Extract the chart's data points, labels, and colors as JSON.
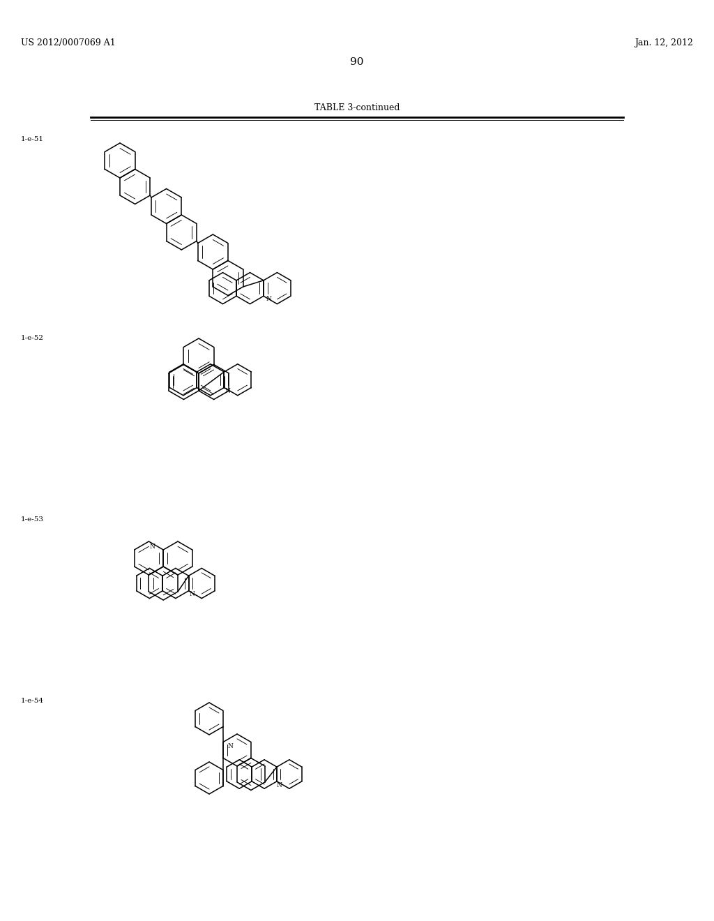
{
  "background_color": "#ffffff",
  "page_number": "90",
  "patent_left": "US 2012/0007069 A1",
  "patent_right": "Jan. 12, 2012",
  "table_title": "TABLE 3-continued",
  "compounds": [
    {
      "label": "1-e-51"
    },
    {
      "label": "1-e-52"
    },
    {
      "label": "1-e-53"
    },
    {
      "label": "1-e-54"
    }
  ],
  "line_color": "#000000",
  "text_color": "#000000",
  "font_size_header": 9,
  "font_size_label": 8,
  "font_size_page": 10,
  "font_size_table": 9
}
